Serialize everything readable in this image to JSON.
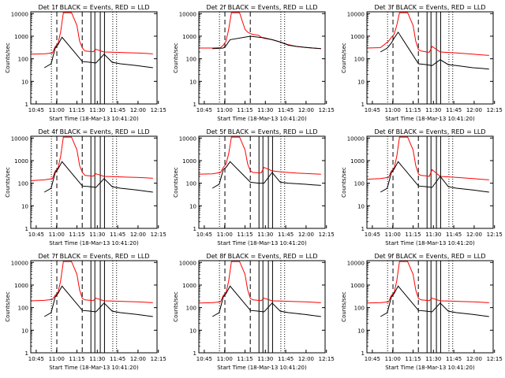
{
  "y_tick_labels": [
    "1",
    "10",
    "100",
    "1000",
    "10000"
  ],
  "x_tick_labels": [
    "10:45",
    "11:00",
    "11:15",
    "11:30",
    "11:45",
    "12:00",
    "12:15"
  ],
  "ylabel": "Counts/sec",
  "xlabel": "Start Time (18-Mar-13 10:41:20)",
  "colors": {
    "events": "#000000",
    "lld": "#ff0000",
    "axes": "#000000"
  },
  "chart_data": [
    {
      "type": "line",
      "title": "Det 1f BLACK = Events, RED = LLD",
      "xlabel": "Start Time (18-Mar-13 10:41:20)",
      "ylabel": "Counts/sec",
      "x_range_min": [
        0,
        93
      ],
      "ylim": [
        1,
        12000
      ],
      "y_scale": "log",
      "series": [
        {
          "name": "LLD",
          "color": "#ff0000",
          "x": [
            0,
            10,
            16,
            18,
            20,
            22,
            24,
            30,
            34,
            36,
            38,
            40,
            44,
            46,
            48,
            54,
            60,
            66,
            72,
            78,
            84,
            90
          ],
          "y": [
            160,
            165,
            180,
            350,
            450,
            1500,
            11000,
            11000,
            3000,
            600,
            300,
            220,
            210,
            205,
            260,
            200,
            195,
            190,
            185,
            180,
            175,
            165
          ]
        },
        {
          "name": "Events",
          "color": "#000000",
          "x": [
            10,
            15,
            18,
            20,
            23,
            38,
            44,
            48,
            54,
            60,
            66,
            72,
            78,
            84,
            90
          ],
          "y": [
            40,
            60,
            300,
            420,
            900,
            75,
            70,
            65,
            160,
            70,
            60,
            55,
            50,
            45,
            40
          ]
        }
      ],
      "solid_vlines": [
        44.3,
        47.2,
        51.2,
        54.3
      ],
      "dashed_vlines": [
        19.2,
        37.9
      ],
      "dotted_vlines": [
        15.2,
        60.4,
        63.2
      ]
    },
    {
      "type": "line",
      "title": "Det 2f BLACK = Events, RED = LLD",
      "xlabel": "Start Time (18-Mar-13 10:41:20)",
      "ylabel": "Counts/sec",
      "x_range_min": [
        0,
        93
      ],
      "ylim": [
        1,
        12000
      ],
      "y_scale": "log",
      "series": [
        {
          "name": "LLD",
          "color": "#ff0000",
          "x": [
            0,
            10,
            16,
            18,
            20,
            22,
            24,
            30,
            34,
            36,
            38,
            40,
            44,
            46,
            48,
            54,
            60,
            66,
            72,
            78,
            84,
            90
          ],
          "y": [
            300,
            300,
            310,
            400,
            600,
            2000,
            11000,
            11000,
            2000,
            1500,
            1300,
            1200,
            1100,
            900,
            800,
            700,
            550,
            420,
            350,
            320,
            300,
            280
          ]
        },
        {
          "name": "Events",
          "color": "#000000",
          "x": [
            10,
            15,
            18,
            20,
            23,
            38,
            44,
            48,
            54,
            60,
            66,
            72,
            78,
            84,
            90
          ],
          "y": [
            280,
            290,
            300,
            380,
            700,
            1000,
            900,
            850,
            700,
            550,
            400,
            350,
            320,
            300,
            280
          ]
        }
      ],
      "solid_vlines": [],
      "dashed_vlines": [
        19.2,
        37.9
      ],
      "dotted_vlines": [
        15.2,
        60.4,
        63.2
      ]
    },
    {
      "type": "line",
      "title": "Det 3f BLACK = Events, RED = LLD",
      "xlabel": "Start Time (18-Mar-13 10:41:20)",
      "ylabel": "Counts/sec",
      "x_range_min": [
        0,
        93
      ],
      "ylim": [
        1,
        12000
      ],
      "y_scale": "log",
      "series": [
        {
          "name": "LLD",
          "color": "#ff0000",
          "x": [
            0,
            10,
            16,
            18,
            20,
            22,
            24,
            30,
            34,
            36,
            38,
            40,
            44,
            46,
            48,
            54,
            60,
            66,
            72,
            78,
            84,
            90
          ],
          "y": [
            300,
            310,
            600,
            900,
            1200,
            3000,
            11000,
            11000,
            3000,
            600,
            250,
            220,
            200,
            195,
            350,
            200,
            190,
            180,
            170,
            160,
            150,
            140
          ]
        },
        {
          "name": "Events",
          "color": "#000000",
          "x": [
            10,
            15,
            18,
            20,
            23,
            38,
            44,
            48,
            54,
            60,
            66,
            72,
            78,
            84,
            90
          ],
          "y": [
            200,
            300,
            500,
            800,
            1500,
            60,
            55,
            50,
            90,
            55,
            50,
            45,
            40,
            38,
            35
          ]
        }
      ],
      "solid_vlines": [
        44.3,
        47.2,
        51.2,
        54.3
      ],
      "dashed_vlines": [
        19.2,
        37.9
      ],
      "dotted_vlines": [
        15.2,
        60.4,
        63.2
      ]
    },
    {
      "type": "line",
      "title": "Det 4f BLACK = Events, RED = LLD",
      "xlabel": "Start Time (18-Mar-13 10:41:20)",
      "ylabel": "Counts/sec",
      "x_range_min": [
        0,
        93
      ],
      "ylim": [
        1,
        12000
      ],
      "y_scale": "log",
      "series": [
        {
          "name": "LLD",
          "color": "#ff0000",
          "x": [
            0,
            10,
            16,
            18,
            20,
            22,
            24,
            30,
            34,
            36,
            38,
            40,
            44,
            46,
            48,
            54,
            60,
            66,
            72,
            78,
            84,
            90
          ],
          "y": [
            130,
            140,
            160,
            350,
            450,
            1500,
            11000,
            11000,
            3000,
            600,
            300,
            220,
            210,
            205,
            260,
            200,
            195,
            190,
            185,
            180,
            175,
            165
          ]
        },
        {
          "name": "Events",
          "color": "#000000",
          "x": [
            10,
            15,
            18,
            20,
            23,
            38,
            44,
            48,
            54,
            60,
            66,
            72,
            78,
            84,
            90
          ],
          "y": [
            40,
            60,
            300,
            420,
            900,
            75,
            70,
            65,
            160,
            70,
            60,
            55,
            50,
            45,
            40
          ]
        }
      ],
      "solid_vlines": [
        44.3,
        47.2,
        51.2,
        54.3
      ],
      "dashed_vlines": [
        19.2,
        37.9
      ],
      "dotted_vlines": [
        15.2,
        60.4,
        63.2
      ]
    },
    {
      "type": "line",
      "title": "Det 5f BLACK = Events, RED = LLD",
      "xlabel": "Start Time (18-Mar-13 10:41:20)",
      "ylabel": "Counts/sec",
      "x_range_min": [
        0,
        93
      ],
      "ylim": [
        1,
        12000
      ],
      "y_scale": "log",
      "series": [
        {
          "name": "LLD",
          "color": "#ff0000",
          "x": [
            0,
            10,
            16,
            18,
            20,
            22,
            24,
            30,
            34,
            36,
            38,
            40,
            44,
            46,
            48,
            54,
            60,
            66,
            72,
            78,
            84,
            90
          ],
          "y": [
            250,
            260,
            300,
            500,
            700,
            2000,
            11000,
            11000,
            3000,
            700,
            350,
            300,
            290,
            290,
            500,
            350,
            320,
            300,
            280,
            270,
            260,
            250
          ]
        },
        {
          "name": "Events",
          "color": "#000000",
          "x": [
            10,
            15,
            18,
            20,
            23,
            38,
            44,
            48,
            54,
            60,
            66,
            72,
            78,
            84,
            90
          ],
          "y": [
            60,
            90,
            400,
            500,
            900,
            110,
            100,
            100,
            300,
            110,
            100,
            95,
            90,
            85,
            80
          ]
        }
      ],
      "solid_vlines": [
        44.3,
        47.2,
        51.2,
        54.3
      ],
      "dashed_vlines": [
        19.2,
        37.9
      ],
      "dotted_vlines": [
        15.2,
        60.4,
        63.2
      ]
    },
    {
      "type": "line",
      "title": "Det 6f BLACK = Events, RED = LLD",
      "xlabel": "Start Time (18-Mar-13 10:41:20)",
      "ylabel": "Counts/sec",
      "x_range_min": [
        0,
        93
      ],
      "ylim": [
        1,
        12000
      ],
      "y_scale": "log",
      "series": [
        {
          "name": "LLD",
          "color": "#ff0000",
          "x": [
            0,
            10,
            16,
            18,
            20,
            22,
            24,
            30,
            34,
            36,
            38,
            40,
            44,
            46,
            48,
            54,
            60,
            66,
            72,
            78,
            84,
            90
          ],
          "y": [
            150,
            160,
            180,
            350,
            450,
            1500,
            11000,
            11000,
            3000,
            600,
            250,
            220,
            210,
            200,
            400,
            200,
            190,
            180,
            170,
            160,
            150,
            140
          ]
        },
        {
          "name": "Events",
          "color": "#000000",
          "x": [
            10,
            15,
            18,
            20,
            23,
            38,
            44,
            48,
            54,
            60,
            66,
            72,
            78,
            84,
            90
          ],
          "y": [
            40,
            60,
            300,
            420,
            900,
            75,
            70,
            65,
            200,
            70,
            60,
            55,
            50,
            45,
            40
          ]
        }
      ],
      "solid_vlines": [
        44.3,
        47.2,
        51.2,
        54.3
      ],
      "dashed_vlines": [
        19.2,
        37.9
      ],
      "dotted_vlines": [
        15.2,
        60.4,
        63.2
      ]
    },
    {
      "type": "line",
      "title": "Det 7f BLACK = Events, RED = LLD",
      "xlabel": "Start Time (18-Mar-13 10:41:20)",
      "ylabel": "Counts/sec",
      "x_range_min": [
        0,
        93
      ],
      "ylim": [
        1,
        12000
      ],
      "y_scale": "log",
      "series": [
        {
          "name": "LLD",
          "color": "#ff0000",
          "x": [
            0,
            10,
            16,
            18,
            20,
            22,
            24,
            30,
            34,
            36,
            38,
            40,
            44,
            46,
            48,
            54,
            60,
            66,
            72,
            78,
            84,
            90
          ],
          "y": [
            200,
            210,
            230,
            350,
            450,
            1500,
            11000,
            11000,
            3000,
            600,
            250,
            220,
            210,
            205,
            260,
            200,
            195,
            190,
            185,
            180,
            175,
            165
          ]
        },
        {
          "name": "Events",
          "color": "#000000",
          "x": [
            10,
            15,
            18,
            20,
            23,
            38,
            44,
            48,
            54,
            60,
            66,
            72,
            78,
            84,
            90
          ],
          "y": [
            40,
            60,
            300,
            420,
            900,
            75,
            70,
            65,
            160,
            70,
            60,
            55,
            50,
            45,
            40
          ]
        }
      ],
      "solid_vlines": [
        44.3,
        47.2,
        51.2,
        54.3
      ],
      "dashed_vlines": [
        19.2,
        37.9
      ],
      "dotted_vlines": [
        15.2,
        60.4,
        63.2
      ]
    },
    {
      "type": "line",
      "title": "Det 8f BLACK = Events, RED = LLD",
      "xlabel": "Start Time (18-Mar-13 10:41:20)",
      "ylabel": "Counts/sec",
      "x_range_min": [
        0,
        93
      ],
      "ylim": [
        1,
        12000
      ],
      "y_scale": "log",
      "series": [
        {
          "name": "LLD",
          "color": "#ff0000",
          "x": [
            0,
            10,
            16,
            18,
            20,
            22,
            24,
            30,
            34,
            36,
            38,
            40,
            44,
            46,
            48,
            54,
            60,
            66,
            72,
            78,
            84,
            90
          ],
          "y": [
            160,
            165,
            180,
            350,
            450,
            1500,
            11000,
            11000,
            3000,
            600,
            250,
            220,
            210,
            205,
            260,
            200,
            195,
            190,
            185,
            180,
            175,
            165
          ]
        },
        {
          "name": "Events",
          "color": "#000000",
          "x": [
            10,
            15,
            18,
            20,
            23,
            38,
            44,
            48,
            54,
            60,
            66,
            72,
            78,
            84,
            90
          ],
          "y": [
            40,
            60,
            300,
            420,
            900,
            75,
            70,
            65,
            160,
            70,
            60,
            55,
            50,
            45,
            40
          ]
        }
      ],
      "solid_vlines": [
        44.3,
        47.2,
        51.2,
        54.3
      ],
      "dashed_vlines": [
        19.2,
        37.9
      ],
      "dotted_vlines": [
        15.2,
        60.4,
        63.2
      ]
    },
    {
      "type": "line",
      "title": "Det 9f BLACK = Events, RED = LLD",
      "xlabel": "Start Time (18-Mar-13 10:41:20)",
      "ylabel": "Counts/sec",
      "x_range_min": [
        0,
        93
      ],
      "ylim": [
        1,
        12000
      ],
      "y_scale": "log",
      "series": [
        {
          "name": "LLD",
          "color": "#ff0000",
          "x": [
            0,
            10,
            16,
            18,
            20,
            22,
            24,
            30,
            34,
            36,
            38,
            40,
            44,
            46,
            48,
            54,
            60,
            66,
            72,
            78,
            84,
            90
          ],
          "y": [
            160,
            165,
            180,
            350,
            450,
            1500,
            11000,
            11000,
            3000,
            600,
            250,
            220,
            210,
            205,
            260,
            200,
            195,
            190,
            185,
            180,
            175,
            165
          ]
        },
        {
          "name": "Events",
          "color": "#000000",
          "x": [
            10,
            15,
            18,
            20,
            23,
            38,
            44,
            48,
            54,
            60,
            66,
            72,
            78,
            84,
            90
          ],
          "y": [
            40,
            60,
            300,
            420,
            900,
            75,
            70,
            65,
            160,
            70,
            60,
            55,
            50,
            45,
            40
          ]
        }
      ],
      "solid_vlines": [
        44.3,
        47.2,
        51.2,
        54.3
      ],
      "dashed_vlines": [
        19.2,
        37.9
      ],
      "dotted_vlines": [
        15.2,
        60.4,
        63.2
      ]
    }
  ]
}
